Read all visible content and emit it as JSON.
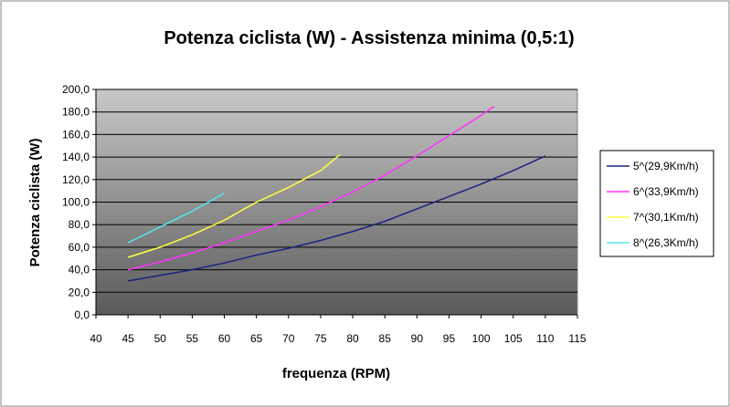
{
  "chart_data": {
    "type": "line",
    "title": "Potenza ciclista (W) - Assistenza minima  (0,5:1)",
    "xlabel": "frequenza (RPM)",
    "ylabel": "Potenza ciclista (W)",
    "xlim": [
      40,
      115
    ],
    "ylim": [
      0,
      200
    ],
    "x_ticks": [
      "40",
      "45",
      "50",
      "55",
      "60",
      "65",
      "70",
      "75",
      "80",
      "85",
      "90",
      "95",
      "100",
      "105",
      "110",
      "115"
    ],
    "y_ticks": [
      "0,0",
      "20,0",
      "40,0",
      "60,0",
      "80,0",
      "100,0",
      "120,0",
      "140,0",
      "160,0",
      "180,0",
      "200,0"
    ],
    "grid": true,
    "legend_position": "right",
    "series": [
      {
        "name": "5^(29,9Km/h)",
        "color": "#1a237e",
        "x": [
          45,
          50,
          55,
          60,
          65,
          70,
          75,
          80,
          85,
          90,
          95,
          100,
          105,
          110
        ],
        "y": [
          30,
          35,
          40,
          46,
          53,
          59,
          66,
          74,
          83,
          94,
          105,
          116,
          128,
          141
        ]
      },
      {
        "name": "6^(33,9Km/h)",
        "color": "#ff33ff",
        "x": [
          45,
          50,
          55,
          60,
          65,
          70,
          75,
          80,
          85,
          90,
          95,
          100,
          102
        ],
        "y": [
          40,
          47,
          55,
          64,
          74,
          84,
          96,
          109,
          124,
          141,
          159,
          177,
          185
        ]
      },
      {
        "name": "7^(30,1Km/h)",
        "color": "#ffff44",
        "x": [
          45,
          50,
          55,
          60,
          65,
          70,
          75,
          78
        ],
        "y": [
          51,
          60,
          71,
          84,
          100,
          113,
          128,
          142
        ]
      },
      {
        "name": "8^(26,3Km/h)",
        "color": "#55e8e8",
        "x": [
          45,
          50,
          55,
          60
        ],
        "y": [
          64,
          78,
          92,
          108
        ]
      }
    ]
  }
}
